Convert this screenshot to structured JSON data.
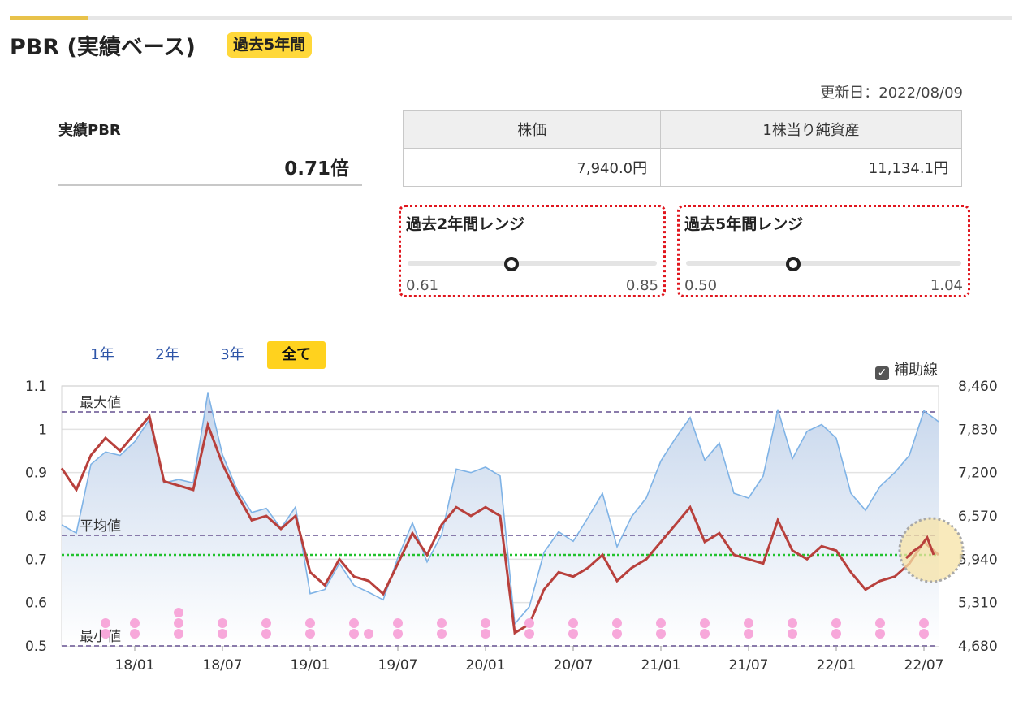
{
  "header": {
    "title": "PBR (実績ベース)",
    "badge": "過去5年間"
  },
  "updated": "更新日：2022/08/09",
  "pbr": {
    "label": "実績PBR",
    "value": "0.71倍"
  },
  "price_table": {
    "headers": [
      "株価",
      "1株当り純資産"
    ],
    "values": [
      "7,940.0円",
      "11,134.1円"
    ]
  },
  "ranges": [
    {
      "title": "過去2年間レンジ",
      "min": "0.61",
      "max": "0.85",
      "current": 0.71,
      "lo": 0.61,
      "hi": 0.85
    },
    {
      "title": "過去5年間レンジ",
      "min": "0.50",
      "max": "1.04",
      "current": 0.71,
      "lo": 0.5,
      "hi": 1.04
    }
  ],
  "tabs": [
    "1年",
    "2年",
    "3年",
    "全て"
  ],
  "active_tab": "全て",
  "aux_toggle": {
    "label": "補助線",
    "checked": true,
    "check_glyph": "✓"
  },
  "colors": {
    "pbr_line": "#b8403c",
    "price_line": "#7fb3e6",
    "area_top": "#c6d6ec",
    "current_line": "#22c22e",
    "ref_line": "#7b6aa0",
    "dot": "#f7a8da",
    "highlight": "#f7e3a6",
    "accent": "#ffd21e"
  },
  "chart_data": {
    "type": "line",
    "x_ticks": [
      "18/01",
      "18/07",
      "19/01",
      "19/07",
      "20/01",
      "20/07",
      "21/01",
      "21/07",
      "22/01",
      "22/07"
    ],
    "y_left": {
      "ticks": [
        "1.1",
        "1",
        "0.9",
        "0.8",
        "0.7",
        "0.6",
        "0.5"
      ],
      "ylim": [
        0.5,
        1.1
      ]
    },
    "y_right": {
      "ticks": [
        "8,460",
        "7,830",
        "7,200",
        "6,570",
        "5,940",
        "5,310",
        "4,680"
      ],
      "ylim": [
        4680,
        8460
      ]
    },
    "x_range": [
      "2017/08",
      "2022/08"
    ],
    "grid": true,
    "reference_lines": [
      {
        "label": "最大値",
        "value": 1.04
      },
      {
        "label": "平均値",
        "value": 0.755
      },
      {
        "label": "最小値",
        "value": 0.5
      }
    ],
    "current_value": 0.71,
    "series": [
      {
        "axis": "left",
        "points": [
          [
            "2017/08",
            0.91
          ],
          [
            "2017/09",
            0.86
          ],
          [
            "2017/10",
            0.94
          ],
          [
            "2017/11",
            0.98
          ],
          [
            "2017/12",
            0.95
          ],
          [
            "2018/01",
            0.99
          ],
          [
            "2018/02",
            1.03
          ],
          [
            "2018/03",
            0.88
          ],
          [
            "2018/04",
            0.87
          ],
          [
            "2018/05",
            0.86
          ],
          [
            "2018/06",
            1.01
          ],
          [
            "2018/07",
            0.92
          ],
          [
            "2018/08",
            0.85
          ],
          [
            "2018/09",
            0.79
          ],
          [
            "2018/10",
            0.8
          ],
          [
            "2018/11",
            0.77
          ],
          [
            "2018/12",
            0.8
          ],
          [
            "2019/01",
            0.67
          ],
          [
            "2019/02",
            0.64
          ],
          [
            "2019/03",
            0.7
          ],
          [
            "2019/04",
            0.66
          ],
          [
            "2019/05",
            0.65
          ],
          [
            "2019/06",
            0.62
          ],
          [
            "2019/07",
            0.69
          ],
          [
            "2019/08",
            0.76
          ],
          [
            "2019/09",
            0.71
          ],
          [
            "2019/10",
            0.78
          ],
          [
            "2019/11",
            0.82
          ],
          [
            "2019/12",
            0.8
          ],
          [
            "2020/01",
            0.82
          ],
          [
            "2020/02",
            0.8
          ],
          [
            "2020/03",
            0.53
          ],
          [
            "2020/04",
            0.55
          ],
          [
            "2020/05",
            0.63
          ],
          [
            "2020/06",
            0.67
          ],
          [
            "2020/07",
            0.66
          ],
          [
            "2020/08",
            0.68
          ],
          [
            "2020/09",
            0.71
          ],
          [
            "2020/10",
            0.65
          ],
          [
            "2020/11",
            0.68
          ],
          [
            "2020/12",
            0.7
          ],
          [
            "2021/01",
            0.74
          ],
          [
            "2021/02",
            0.78
          ],
          [
            "2021/03",
            0.82
          ],
          [
            "2021/04",
            0.74
          ],
          [
            "2021/05",
            0.76
          ],
          [
            "2021/06",
            0.71
          ],
          [
            "2021/07",
            0.7
          ],
          [
            "2021/08",
            0.69
          ],
          [
            "2021/09",
            0.79
          ],
          [
            "2021/10",
            0.72
          ],
          [
            "2021/11",
            0.7
          ],
          [
            "2021/12",
            0.73
          ],
          [
            "2022/01",
            0.72
          ],
          [
            "2022/02",
            0.67
          ],
          [
            "2022/03",
            0.63
          ],
          [
            "2022/04",
            0.65
          ],
          [
            "2022/05",
            0.66
          ],
          [
            "2022/06",
            0.69
          ],
          [
            "2022/07",
            0.74
          ],
          [
            "2022/08",
            0.71
          ]
        ]
      },
      {
        "axis": "right",
        "points": [
          [
            "2017/08",
            6440
          ],
          [
            "2017/09",
            6320
          ],
          [
            "2017/10",
            7320
          ],
          [
            "2017/11",
            7500
          ],
          [
            "2017/12",
            7450
          ],
          [
            "2018/01",
            7650
          ],
          [
            "2018/02",
            7970
          ],
          [
            "2018/03",
            7050
          ],
          [
            "2018/04",
            7100
          ],
          [
            "2018/05",
            7050
          ],
          [
            "2018/06",
            8360
          ],
          [
            "2018/07",
            7460
          ],
          [
            "2018/08",
            6950
          ],
          [
            "2018/09",
            6620
          ],
          [
            "2018/10",
            6680
          ],
          [
            "2018/11",
            6390
          ],
          [
            "2018/12",
            6700
          ],
          [
            "2019/01",
            5440
          ],
          [
            "2019/02",
            5500
          ],
          [
            "2019/03",
            5880
          ],
          [
            "2019/04",
            5560
          ],
          [
            "2019/05",
            5460
          ],
          [
            "2019/06",
            5350
          ],
          [
            "2019/07",
            5960
          ],
          [
            "2019/08",
            6470
          ],
          [
            "2019/09",
            5900
          ],
          [
            "2019/10",
            6300
          ],
          [
            "2019/11",
            7250
          ],
          [
            "2019/12",
            7200
          ],
          [
            "2020/01",
            7280
          ],
          [
            "2020/02",
            7150
          ],
          [
            "2020/03",
            5000
          ],
          [
            "2020/04",
            5250
          ],
          [
            "2020/05",
            6040
          ],
          [
            "2020/06",
            6340
          ],
          [
            "2020/07",
            6200
          ],
          [
            "2020/08",
            6540
          ],
          [
            "2020/09",
            6900
          ],
          [
            "2020/10",
            6120
          ],
          [
            "2020/11",
            6560
          ],
          [
            "2020/12",
            6830
          ],
          [
            "2021/01",
            7370
          ],
          [
            "2021/02",
            7700
          ],
          [
            "2021/03",
            8000
          ],
          [
            "2021/04",
            7380
          ],
          [
            "2021/05",
            7630
          ],
          [
            "2021/06",
            6900
          ],
          [
            "2021/07",
            6830
          ],
          [
            "2021/08",
            7150
          ],
          [
            "2021/09",
            8120
          ],
          [
            "2021/10",
            7400
          ],
          [
            "2021/11",
            7800
          ],
          [
            "2021/12",
            7900
          ],
          [
            "2022/01",
            7700
          ],
          [
            "2022/02",
            6900
          ],
          [
            "2022/03",
            6650
          ],
          [
            "2022/04",
            7000
          ],
          [
            "2022/05",
            7200
          ],
          [
            "2022/06",
            7450
          ],
          [
            "2022/07",
            8100
          ],
          [
            "2022/08",
            7940
          ]
        ]
      }
    ],
    "event_markers": [
      {
        "date": "2017/11",
        "count": 2
      },
      {
        "date": "2018/01",
        "count": 2
      },
      {
        "date": "2018/04",
        "count": 3
      },
      {
        "date": "2018/07",
        "count": 2
      },
      {
        "date": "2018/10",
        "count": 2
      },
      {
        "date": "2019/01",
        "count": 2
      },
      {
        "date": "2019/04",
        "count": 2
      },
      {
        "date": "2019/05",
        "count": 1
      },
      {
        "date": "2019/07",
        "count": 2
      },
      {
        "date": "2019/10",
        "count": 2
      },
      {
        "date": "2020/01",
        "count": 2
      },
      {
        "date": "2020/04",
        "count": 2
      },
      {
        "date": "2020/07",
        "count": 2
      },
      {
        "date": "2020/10",
        "count": 2
      },
      {
        "date": "2021/01",
        "count": 2
      },
      {
        "date": "2021/04",
        "count": 2
      },
      {
        "date": "2021/07",
        "count": 2
      },
      {
        "date": "2021/10",
        "count": 2
      },
      {
        "date": "2022/01",
        "count": 2
      },
      {
        "date": "2022/04",
        "count": 2
      },
      {
        "date": "2022/07",
        "count": 2
      }
    ]
  }
}
